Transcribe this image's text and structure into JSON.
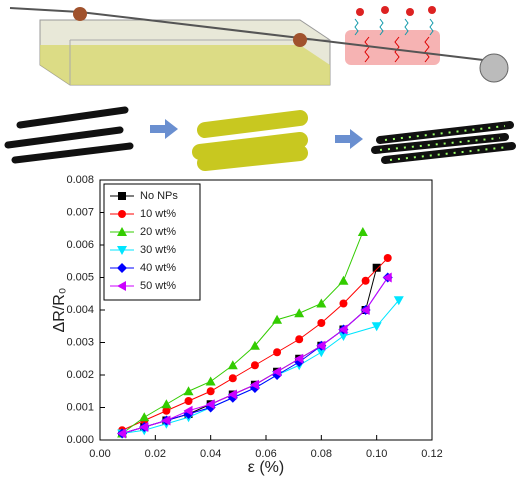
{
  "chart_data": {
    "type": "line",
    "xlabel": "ε (%)",
    "ylabel": "ΔR/R₀",
    "xlim": [
      0,
      0.12
    ],
    "ylim": [
      0,
      0.008
    ],
    "xticks": [
      {
        "value": 0,
        "label": "0.00"
      },
      {
        "value": 0.02,
        "label": "0.02"
      },
      {
        "value": 0.04,
        "label": "0.04"
      },
      {
        "value": 0.06,
        "label": "0.06"
      },
      {
        "value": 0.08,
        "label": "0.08"
      },
      {
        "value": 0.1,
        "label": "0.10"
      },
      {
        "value": 0.12,
        "label": "0.12"
      }
    ],
    "yticks": [
      {
        "value": 0,
        "label": "0.000"
      },
      {
        "value": 0.001,
        "label": "0.001"
      },
      {
        "value": 0.002,
        "label": "0.002"
      },
      {
        "value": 0.003,
        "label": "0.003"
      },
      {
        "value": 0.004,
        "label": "0.004"
      },
      {
        "value": 0.005,
        "label": "0.005"
      },
      {
        "value": 0.006,
        "label": "0.006"
      },
      {
        "value": 0.007,
        "label": "0.007"
      },
      {
        "value": 0.008,
        "label": "0.008"
      }
    ],
    "legend": "upper-left",
    "series": [
      {
        "name": "No NPs",
        "color": "#000000",
        "marker": "square",
        "x": [
          0.008,
          0.016,
          0.024,
          0.032,
          0.04,
          0.048,
          0.056,
          0.064,
          0.072,
          0.08,
          0.088,
          0.096,
          0.1
        ],
        "values": [
          0.0002,
          0.0004,
          0.0006,
          0.0008,
          0.0011,
          0.0014,
          0.0017,
          0.0021,
          0.0025,
          0.0029,
          0.0034,
          0.004,
          0.0053
        ]
      },
      {
        "name": "10 wt%",
        "color": "#ff0000",
        "marker": "circle",
        "x": [
          0.008,
          0.016,
          0.024,
          0.032,
          0.04,
          0.048,
          0.056,
          0.064,
          0.072,
          0.08,
          0.088,
          0.096,
          0.104
        ],
        "values": [
          0.0003,
          0.0006,
          0.0009,
          0.0012,
          0.0015,
          0.0019,
          0.0023,
          0.0027,
          0.0031,
          0.0036,
          0.0042,
          0.0049,
          0.0056
        ]
      },
      {
        "name": "20 wt%",
        "color": "#33cc00",
        "marker": "triangle-up",
        "x": [
          0.008,
          0.016,
          0.024,
          0.032,
          0.04,
          0.048,
          0.056,
          0.064,
          0.072,
          0.08,
          0.088,
          0.095
        ],
        "values": [
          0.0002,
          0.0007,
          0.0011,
          0.0015,
          0.0018,
          0.0023,
          0.0029,
          0.0037,
          0.0039,
          0.0042,
          0.0049,
          0.0064
        ]
      },
      {
        "name": "30 wt%",
        "color": "#00e5ff",
        "marker": "triangle-down",
        "x": [
          0.008,
          0.016,
          0.024,
          0.032,
          0.04,
          0.048,
          0.056,
          0.064,
          0.072,
          0.08,
          0.088,
          0.1,
          0.108
        ],
        "values": [
          0.0002,
          0.0003,
          0.0005,
          0.0007,
          0.001,
          0.0013,
          0.0016,
          0.002,
          0.0023,
          0.0027,
          0.0032,
          0.0035,
          0.0043
        ]
      },
      {
        "name": "40 wt%",
        "color": "#0000ff",
        "marker": "diamond",
        "x": [
          0.008,
          0.016,
          0.024,
          0.032,
          0.04,
          0.048,
          0.056,
          0.064,
          0.072,
          0.08,
          0.088,
          0.096,
          0.104
        ],
        "values": [
          0.0002,
          0.0004,
          0.0006,
          0.0008,
          0.001,
          0.0013,
          0.0016,
          0.002,
          0.0024,
          0.0029,
          0.0034,
          0.004,
          0.005
        ]
      },
      {
        "name": "50 wt%",
        "color": "#cc00ff",
        "marker": "triangle-left",
        "x": [
          0.008,
          0.016,
          0.024,
          0.032,
          0.04,
          0.048,
          0.056,
          0.064,
          0.072,
          0.08,
          0.088,
          0.096,
          0.104
        ],
        "values": [
          0.0002,
          0.0004,
          0.0006,
          0.0009,
          0.0011,
          0.0014,
          0.0017,
          0.0021,
          0.0025,
          0.0029,
          0.0034,
          0.004,
          0.005
        ]
      }
    ]
  }
}
